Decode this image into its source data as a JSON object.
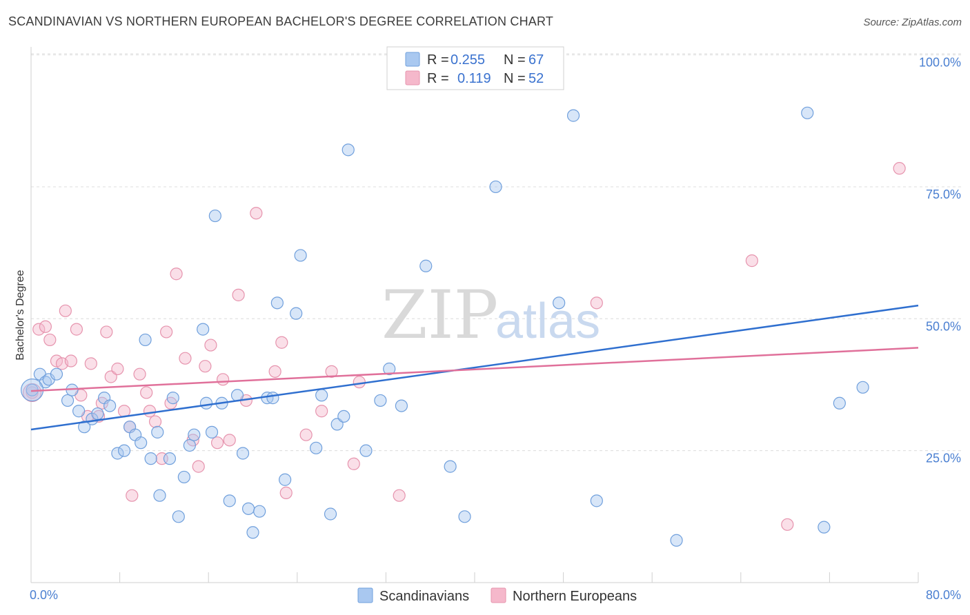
{
  "header": {
    "title": "SCANDINAVIAN VS NORTHERN EUROPEAN BACHELOR'S DEGREE CORRELATION CHART",
    "source": "Source: ZipAtlas.com"
  },
  "watermark": {
    "zip": "ZIP",
    "atlas": "atlas"
  },
  "legend": {
    "rows": [
      {
        "r_label": "R =",
        "r_value": "0.255",
        "n_label": "N =",
        "n_value": "67"
      },
      {
        "r_label": "R =",
        "r_value": "0.119",
        "n_label": "N =",
        "n_value": "52"
      }
    ]
  },
  "colors": {
    "blue_fill": "#a9c8f0",
    "blue_stroke": "#6f9fdc",
    "blue_line": "#2f6fcf",
    "pink_fill": "#f5b8cb",
    "pink_stroke": "#e693ad",
    "pink_line": "#e0709a",
    "grid": "#dcdcdc"
  },
  "chart_data": {
    "type": "scatter",
    "title": "SCANDINAVIAN VS NORTHERN EUROPEAN BACHELOR'S DEGREE CORRELATION CHART",
    "xlabel": "",
    "ylabel": "Bachelor's Degree",
    "xlim": [
      0,
      80
    ],
    "ylim": [
      0,
      100
    ],
    "x_ticks": [
      "0.0%",
      "80.0%"
    ],
    "y_ticks": [
      {
        "value": 25,
        "label": "25.0%"
      },
      {
        "value": 50,
        "label": "50.0%"
      },
      {
        "value": 75,
        "label": "75.0%"
      },
      {
        "value": 100,
        "label": "100.0%"
      }
    ],
    "grid": true,
    "legend_position": "top-center",
    "series": [
      {
        "name": "Scandinavians",
        "r": 0.255,
        "n": 67,
        "trend": {
          "x": [
            0,
            80
          ],
          "y": [
            29.0,
            52.5
          ]
        },
        "points": [
          [
            0.1,
            36.5
          ],
          [
            0.8,
            39.5
          ],
          [
            1.3,
            38.0
          ],
          [
            1.6,
            38.5
          ],
          [
            2.3,
            39.5
          ],
          [
            3.3,
            34.5
          ],
          [
            3.7,
            36.5
          ],
          [
            4.3,
            32.5
          ],
          [
            4.8,
            29.5
          ],
          [
            5.5,
            31.0
          ],
          [
            6.0,
            32.0
          ],
          [
            6.6,
            35.0
          ],
          [
            7.1,
            33.5
          ],
          [
            7.8,
            24.5
          ],
          [
            8.4,
            25.0
          ],
          [
            8.9,
            29.5
          ],
          [
            9.4,
            28.0
          ],
          [
            9.9,
            26.5
          ],
          [
            10.3,
            46.0
          ],
          [
            10.8,
            23.5
          ],
          [
            11.4,
            28.5
          ],
          [
            11.6,
            16.5
          ],
          [
            12.5,
            23.5
          ],
          [
            12.8,
            35.0
          ],
          [
            13.3,
            12.5
          ],
          [
            13.8,
            20.0
          ],
          [
            14.3,
            26.0
          ],
          [
            14.7,
            28.0
          ],
          [
            15.5,
            48.0
          ],
          [
            15.8,
            34.0
          ],
          [
            16.3,
            28.5
          ],
          [
            16.6,
            69.5
          ],
          [
            17.2,
            34.0
          ],
          [
            17.9,
            15.5
          ],
          [
            18.6,
            35.5
          ],
          [
            19.1,
            24.5
          ],
          [
            19.6,
            14.0
          ],
          [
            20.0,
            9.5
          ],
          [
            20.6,
            13.5
          ],
          [
            21.3,
            35.0
          ],
          [
            21.8,
            35.0
          ],
          [
            22.2,
            53.0
          ],
          [
            22.9,
            19.5
          ],
          [
            23.9,
            51.0
          ],
          [
            24.3,
            62.0
          ],
          [
            25.7,
            25.5
          ],
          [
            26.2,
            35.5
          ],
          [
            27.0,
            13.0
          ],
          [
            27.6,
            30.0
          ],
          [
            28.2,
            31.5
          ],
          [
            28.6,
            82.0
          ],
          [
            30.2,
            25.0
          ],
          [
            31.5,
            34.5
          ],
          [
            32.3,
            40.5
          ],
          [
            33.4,
            33.5
          ],
          [
            35.6,
            60.0
          ],
          [
            37.8,
            22.0
          ],
          [
            39.1,
            12.5
          ],
          [
            41.9,
            75.0
          ],
          [
            47.6,
            53.0
          ],
          [
            48.9,
            88.5
          ],
          [
            51.0,
            15.5
          ],
          [
            58.2,
            8.0
          ],
          [
            70.0,
            89.0
          ],
          [
            71.5,
            10.5
          ],
          [
            72.9,
            34.0
          ],
          [
            75.0,
            37.0
          ]
        ]
      },
      {
        "name": "Northern Europeans",
        "r": 0.119,
        "n": 52,
        "trend": {
          "x": [
            0,
            80
          ],
          "y": [
            36.3,
            44.5
          ]
        },
        "points": [
          [
            0.1,
            36.0
          ],
          [
            0.7,
            48.0
          ],
          [
            1.3,
            48.5
          ],
          [
            1.7,
            46.0
          ],
          [
            2.3,
            42.0
          ],
          [
            2.8,
            41.5
          ],
          [
            3.1,
            51.5
          ],
          [
            3.6,
            42.0
          ],
          [
            4.1,
            48.0
          ],
          [
            4.5,
            35.5
          ],
          [
            5.1,
            31.5
          ],
          [
            5.4,
            41.5
          ],
          [
            6.1,
            31.5
          ],
          [
            6.4,
            34.0
          ],
          [
            6.8,
            47.5
          ],
          [
            7.2,
            39.0
          ],
          [
            7.8,
            40.5
          ],
          [
            8.4,
            32.5
          ],
          [
            8.9,
            29.5
          ],
          [
            9.1,
            16.5
          ],
          [
            9.8,
            39.5
          ],
          [
            10.4,
            36.0
          ],
          [
            10.7,
            32.5
          ],
          [
            11.2,
            30.5
          ],
          [
            11.8,
            23.5
          ],
          [
            12.2,
            47.5
          ],
          [
            12.6,
            34.0
          ],
          [
            13.1,
            58.5
          ],
          [
            13.9,
            42.5
          ],
          [
            14.6,
            27.0
          ],
          [
            15.1,
            22.0
          ],
          [
            15.7,
            41.0
          ],
          [
            16.2,
            45.0
          ],
          [
            16.8,
            26.5
          ],
          [
            17.3,
            38.5
          ],
          [
            17.9,
            27.0
          ],
          [
            18.7,
            54.5
          ],
          [
            19.4,
            34.5
          ],
          [
            20.3,
            70.0
          ],
          [
            22.0,
            40.0
          ],
          [
            22.6,
            45.5
          ],
          [
            23.0,
            17.0
          ],
          [
            24.8,
            28.0
          ],
          [
            26.2,
            32.5
          ],
          [
            27.1,
            40.0
          ],
          [
            29.1,
            22.5
          ],
          [
            29.6,
            38.0
          ],
          [
            33.2,
            16.5
          ],
          [
            51.0,
            53.0
          ],
          [
            65.0,
            61.0
          ],
          [
            68.2,
            11.0
          ],
          [
            78.3,
            78.5
          ]
        ]
      }
    ]
  },
  "bottom_legend": {
    "items": [
      {
        "label": "Scandinavians"
      },
      {
        "label": "Northern Europeans"
      }
    ]
  }
}
